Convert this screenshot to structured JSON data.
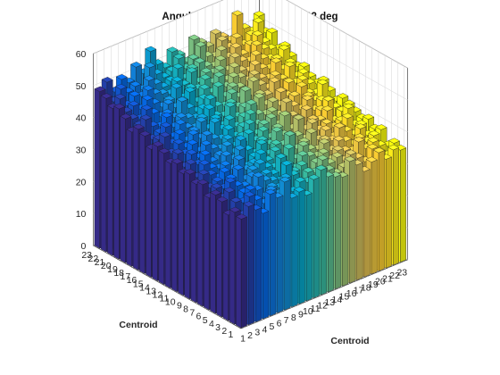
{
  "figure": {
    "title": "Angular resolution =   1.1719e-02 deg"
  },
  "chart_data": {
    "type": "bar3",
    "title": "Angular resolution =   1.1719e-02 deg",
    "xlabel": "Centroid",
    "ylabel": "Centroid",
    "zlabel": "",
    "x_ticks": [
      1,
      2,
      3,
      4,
      5,
      6,
      7,
      8,
      9,
      10,
      11,
      12,
      13,
      14,
      15,
      16,
      17,
      18,
      19,
      20,
      21,
      22,
      23
    ],
    "y_ticks": [
      1,
      2,
      3,
      4,
      5,
      6,
      7,
      8,
      9,
      10,
      11,
      12,
      13,
      14,
      15,
      16,
      17,
      18,
      19,
      20,
      21,
      22,
      23
    ],
    "z_ticks": [
      0,
      10,
      20,
      30,
      40,
      50,
      60
    ],
    "zlim": [
      0,
      60
    ],
    "grid": true,
    "colormap": "parula",
    "colormap_stops": [
      "#352a87",
      "#0363e1",
      "#1485d4",
      "#06a7c6",
      "#38b99e",
      "#92bf73",
      "#d9ba56",
      "#fcce2e",
      "#f9fb0e"
    ],
    "z": [
      [
        34,
        37,
        35,
        33,
        38,
        36,
        40,
        34,
        35,
        33,
        37,
        39,
        36,
        35,
        34,
        38,
        36,
        33,
        35,
        37,
        34,
        36,
        35
      ],
      [
        35,
        33,
        38,
        36,
        34,
        37,
        35,
        39,
        34,
        36,
        35,
        33,
        37,
        36,
        34,
        35,
        38,
        36,
        34,
        37,
        35,
        33,
        36
      ],
      [
        33,
        36,
        35,
        38,
        37,
        34,
        36,
        35,
        41,
        37,
        34,
        36,
        35,
        38,
        36,
        37,
        35,
        34,
        39,
        36,
        37,
        35,
        34
      ],
      [
        36,
        38,
        34,
        36,
        35,
        39,
        37,
        36,
        35,
        38,
        36,
        37,
        34,
        36,
        38,
        35,
        37,
        36,
        35,
        38,
        36,
        37,
        38
      ],
      [
        37,
        35,
        39,
        37,
        36,
        38,
        35,
        37,
        36,
        40,
        37,
        35,
        38,
        37,
        36,
        39,
        36,
        38,
        37,
        35,
        39,
        36,
        37
      ],
      [
        35,
        37,
        36,
        38,
        40,
        36,
        38,
        39,
        37,
        36,
        38,
        40,
        36,
        39,
        37,
        36,
        38,
        37,
        40,
        38,
        36,
        38,
        39
      ],
      [
        38,
        36,
        37,
        39,
        36,
        41,
        37,
        38,
        40,
        37,
        39,
        36,
        42,
        37,
        38,
        40,
        37,
        39,
        36,
        38,
        40,
        37,
        38
      ],
      [
        37,
        39,
        38,
        36,
        39,
        37,
        42,
        36,
        38,
        41,
        37,
        39,
        38,
        40,
        39,
        37,
        41,
        38,
        39,
        37,
        38,
        41,
        39
      ],
      [
        39,
        37,
        40,
        38,
        37,
        40,
        38,
        43,
        39,
        37,
        40,
        38,
        41,
        39,
        37,
        42,
        38,
        40,
        39,
        41,
        37,
        39,
        40
      ],
      [
        38,
        40,
        39,
        41,
        38,
        39,
        41,
        38,
        40,
        42,
        39,
        41,
        38,
        40,
        43,
        38,
        40,
        42,
        38,
        40,
        42,
        39,
        41
      ],
      [
        40,
        38,
        41,
        39,
        42,
        40,
        39,
        41,
        38,
        40,
        43,
        39,
        41,
        42,
        39,
        41,
        40,
        38,
        43,
        39,
        41,
        40,
        39
      ],
      [
        39,
        41,
        40,
        42,
        39,
        43,
        41,
        40,
        42,
        39,
        41,
        44,
        40,
        39,
        42,
        40,
        43,
        41,
        39,
        42,
        40,
        44,
        41
      ],
      [
        41,
        40,
        42,
        40,
        43,
        41,
        40,
        44,
        41,
        43,
        40,
        42,
        45,
        41,
        40,
        43,
        41,
        39,
        42,
        44,
        41,
        40,
        43
      ],
      [
        42,
        44,
        41,
        43,
        40,
        42,
        44,
        41,
        43,
        40,
        45,
        41,
        43,
        42,
        44,
        41,
        40,
        43,
        41,
        40,
        44,
        42,
        41
      ],
      [
        40,
        42,
        45,
        41,
        44,
        42,
        41,
        43,
        45,
        42,
        41,
        44,
        42,
        46,
        41,
        43,
        42,
        45,
        41,
        43,
        42,
        44,
        42
      ],
      [
        43,
        41,
        42,
        46,
        42,
        44,
        43,
        42,
        44,
        46,
        43,
        42,
        45,
        43,
        42,
        46,
        44,
        42,
        45,
        43,
        46,
        42,
        44
      ],
      [
        44,
        46,
        43,
        42,
        45,
        43,
        47,
        44,
        42,
        45,
        44,
        47,
        43,
        45,
        44,
        42,
        46,
        44,
        43,
        47,
        44,
        45,
        43
      ],
      [
        42,
        43,
        47,
        45,
        43,
        46,
        44,
        45,
        47,
        43,
        46,
        44,
        48,
        44,
        46,
        45,
        43,
        47,
        45,
        44,
        46,
        48,
        45
      ],
      [
        45,
        44,
        43,
        48,
        46,
        44,
        45,
        48,
        44,
        46,
        45,
        47,
        45,
        48,
        44,
        47,
        45,
        44,
        48,
        46,
        45,
        44,
        47
      ],
      [
        47,
        45,
        46,
        44,
        49,
        47,
        46,
        45,
        48,
        46,
        49,
        45,
        47,
        46,
        49,
        45,
        48,
        46,
        45,
        49,
        47,
        46,
        45
      ],
      [
        46,
        48,
        45,
        47,
        46,
        50,
        48,
        46,
        47,
        50,
        46,
        48,
        49,
        47,
        46,
        50,
        47,
        49,
        46,
        48,
        50,
        47,
        49
      ],
      [
        48,
        46,
        49,
        47,
        48,
        46,
        52,
        49,
        47,
        48,
        51,
        47,
        49,
        52,
        48,
        47,
        51,
        48,
        50,
        47,
        49,
        52,
        48
      ],
      [
        49,
        51,
        47,
        50,
        48,
        52,
        49,
        55,
        50,
        48,
        52,
        50,
        47,
        53,
        51,
        49,
        52,
        50,
        48,
        55,
        50,
        48,
        52
      ]
    ]
  }
}
